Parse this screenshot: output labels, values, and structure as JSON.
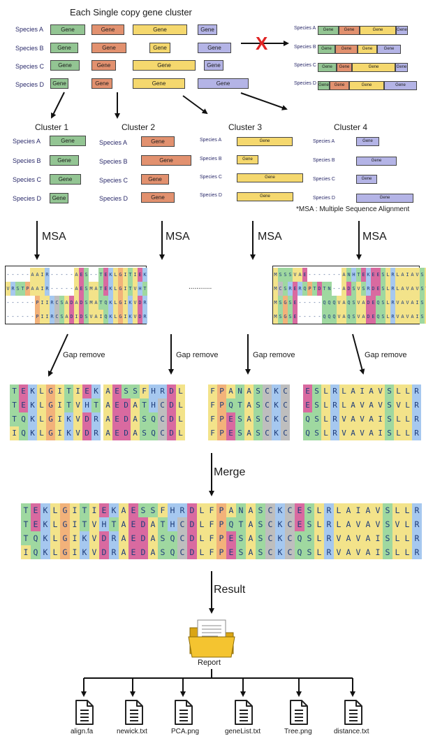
{
  "diagram": {
    "title": "Each Single copy gene cluster",
    "species": [
      "Species A",
      "Species B",
      "Species C",
      "Species D"
    ],
    "gene_label": "Gene",
    "clusters": [
      "Cluster 1",
      "Cluster 2",
      "Cluster 3",
      "Cluster 4"
    ],
    "msa_label": "MSA",
    "msa_note": "*MSA : Multiple Sequence Alignment",
    "ellipsis": "............",
    "gap_remove_label": "Gap remove",
    "merge_label": "Merge",
    "result_label": "Result",
    "report_label": "Report",
    "files": [
      "align.fa",
      "newick.txt",
      "PCA.png",
      "geneList.txt",
      "Tree.png",
      "distance.txt"
    ],
    "reject_mark": "X",
    "colors": {
      "gene_green": "#93c593",
      "gene_salmon": "#e2916f",
      "gene_yellow": "#f5d86e",
      "gene_lavender": "#b4b4e6",
      "reject_red": "#e02424",
      "folder_yellow": "#f4c430"
    },
    "msa_left": [
      "-----AAIR-----AES--TEKLGITIEK",
      "VRSTPAAIR-----AESMATEKLGITVHT",
      "------PIIRCSADADSMATQKLGIKVDR",
      "------PIIRCSADIDSVAIQKLGIKVDR"
    ],
    "msa_right": [
      "MSSSVAE-------ANHTEKEESLRLAIAVSLLR",
      "MCSRERQPTDTN--ADSVSRDESLRLAVAVSVLR",
      "MSGSE-----QQQVAQSVADEQSLRVAVAISLLR",
      "MSGSE-----QQQVAQSVADEQSLRVAVAISLLR"
    ],
    "gap_removed": [
      [
        "TEKLGITIEK",
        "TEKLGITVHT",
        "TQKLGIKVDR",
        "IQKLGIKVDR"
      ],
      [
        "AESSFHRDL",
        "AEDATHCDL",
        "AEDASQCDL",
        "AEDASQCDL"
      ],
      [
        "FPANASCKC",
        "FPQTASCKC",
        "FPESASCKC",
        "FPESASCKC"
      ],
      [
        "ESLRLAIAVSLLR",
        "ESLRLAVAVSVLR",
        "QSLRVAVAISLLR",
        "QSLRVAVAISLLR"
      ]
    ],
    "merged": [
      "TEKLGITIEKAESSFHRDLFPANASCKCESLRLAIAVSLLR",
      "TEKLGITVHTAEDATHCDLFPQTASCKCESLRLAVAVSVLR",
      "TQKLGIKVDRAEDASQCDLFPESASCKCQSLRVAVAISLLR",
      "IQKLGIKVDRAEDASQCDLFPESASCKCQSLRVAVAISLLR"
    ],
    "residue_colors": {
      "A": "#f3e38a",
      "V": "#f3e38a",
      "I": "#f3e38a",
      "L": "#f3e38a",
      "M": "#f3e38a",
      "F": "#f3e38a",
      "K": "#a6c8ef",
      "R": "#a6c8ef",
      "H": "#a6c8ef",
      "D": "#d96aa0",
      "E": "#d96aa0",
      "S": "#9fd8a0",
      "T": "#9fd8a0",
      "N": "#9fd8a0",
      "Q": "#9fd8a0",
      "G": "#f2b27a",
      "P": "#f2b27a",
      "C": "#bebebe",
      "W": "#f3e38a",
      "Y": "#9fd8a0",
      "-": "#ffffff"
    }
  }
}
